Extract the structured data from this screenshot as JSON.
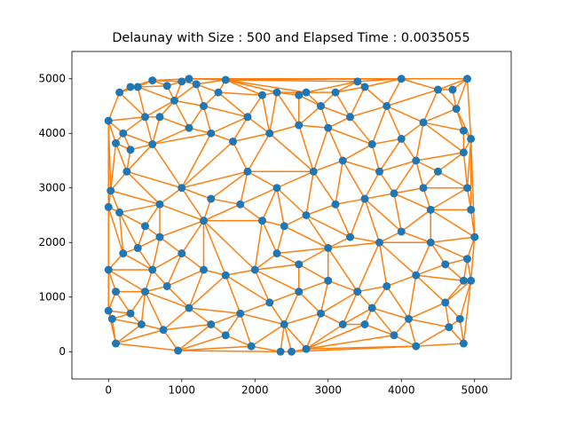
{
  "chart_data": {
    "type": "delaunay",
    "title": "Delaunay with Size : 500 and Elapsed Time : 0.0035055",
    "x": [
      0,
      30,
      0,
      100,
      150,
      300,
      400,
      600,
      800,
      1000,
      1100,
      1200,
      1500,
      1600,
      2100,
      2300,
      2600,
      2700,
      3100,
      3400,
      3500,
      4000,
      4500,
      4700,
      4900,
      4750,
      4850,
      4950,
      4850,
      4900,
      4950,
      5000,
      4900,
      4850,
      4950,
      4800,
      4850,
      4650,
      4200,
      3900,
      3500,
      3200,
      2700,
      2500,
      2350,
      1950,
      950,
      750,
      450,
      100,
      0,
      50,
      0,
      100,
      200,
      150,
      250,
      300,
      600,
      700,
      900,
      1100,
      1400,
      1700,
      2200,
      2600,
      3000,
      3300,
      3600,
      4000,
      4200,
      4500,
      4300,
      3900,
      3500,
      3100,
      2700,
      2400,
      2100,
      1800,
      1400,
      1000,
      700,
      500,
      400,
      700,
      1000,
      1300,
      1600,
      2000,
      2300,
      2600,
      3000,
      3300,
      3700,
      4000,
      4400,
      4600,
      4200,
      3800,
      3400,
      3000,
      2600,
      2200,
      1800,
      1400,
      1100,
      800,
      500,
      300,
      600,
      1300,
      1900,
      2300,
      2800,
      3200,
      3700,
      4400,
      4600,
      4100,
      3600,
      2900,
      2400,
      1600,
      4300,
      3800,
      2900,
      1900,
      1300,
      500,
      200
    ],
    "values": [
      2650,
      2950,
      4230,
      3820,
      4750,
      4850,
      4850,
      4970,
      4870,
      4950,
      5000,
      4900,
      4750,
      4980,
      4700,
      4750,
      4700,
      4750,
      4750,
      4950,
      4850,
      5000,
      4800,
      4800,
      5000,
      4450,
      4050,
      3900,
      3650,
      3000,
      2600,
      2100,
      1700,
      1300,
      1300,
      600,
      150,
      450,
      100,
      300,
      500,
      500,
      50,
      0,
      0,
      100,
      20,
      400,
      500,
      150,
      750,
      600,
      1500,
      1100,
      1800,
      2550,
      3300,
      3700,
      3800,
      4300,
      4600,
      4100,
      4000,
      3850,
      4000,
      4150,
      4100,
      4300,
      3800,
      3900,
      3500,
      3300,
      3000,
      2900,
      2800,
      2700,
      2500,
      2300,
      2400,
      2700,
      2800,
      3000,
      2700,
      2300,
      1900,
      2100,
      1800,
      1500,
      1400,
      1500,
      1800,
      1600,
      1900,
      2100,
      2000,
      2200,
      2000,
      1600,
      1400,
      1200,
      1100,
      1300,
      1100,
      900,
      700,
      500,
      800,
      1200,
      1100,
      700,
      1500,
      2400,
      3300,
      3000,
      3300,
      3500,
      3300,
      2600,
      900,
      600,
      800,
      700,
      500,
      300,
      4200,
      4500,
      4500,
      4300,
      4500,
      4300,
      4000
    ],
    "color": "#1f77b4",
    "edge_color": "#ff7f0e",
    "xlim": [
      -500,
      5500
    ],
    "ylim": [
      -500,
      5500
    ],
    "xticks": [
      0,
      1000,
      2000,
      3000,
      4000,
      5000
    ],
    "yticks": [
      0,
      1000,
      2000,
      3000,
      4000,
      5000
    ]
  }
}
